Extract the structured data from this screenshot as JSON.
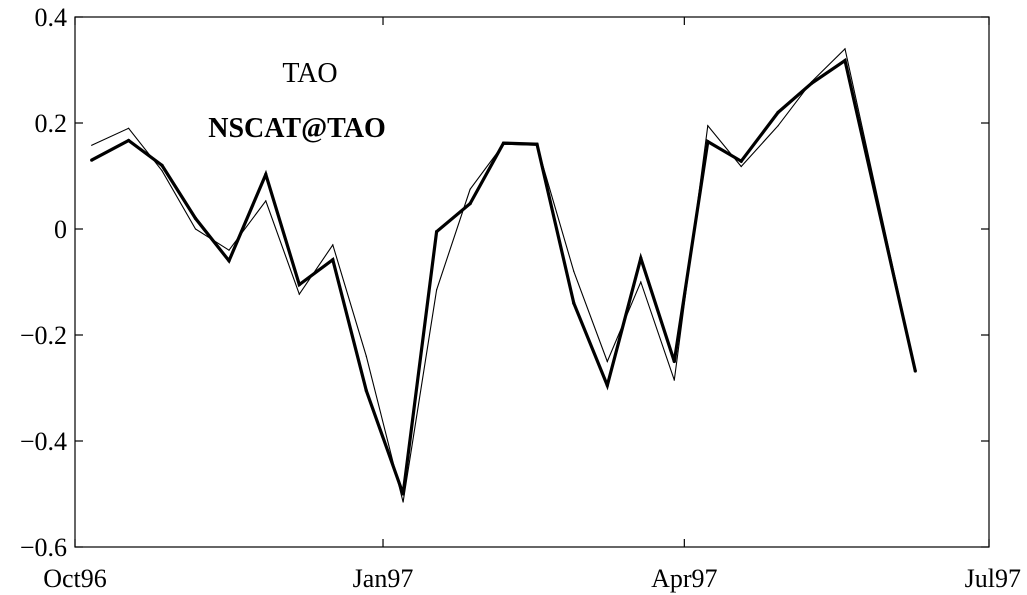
{
  "chart_data": {
    "type": "line",
    "title": "",
    "xlabel": "",
    "ylabel": "",
    "x_ticks": [
      {
        "date": "1996-10-01",
        "label": "Oct96"
      },
      {
        "date": "1997-01-01",
        "label": "Jan97"
      },
      {
        "date": "1997-04-01",
        "label": "Apr97"
      },
      {
        "date": "1997-07-01",
        "label": "Jul97"
      }
    ],
    "xlim": [
      "1996-10-01",
      "1997-07-01"
    ],
    "ylim": [
      -0.6,
      0.4
    ],
    "y_ticks": [
      {
        "value": 0.4,
        "label": "0.4"
      },
      {
        "value": 0.2,
        "label": "0.2"
      },
      {
        "value": 0,
        "label": "0"
      },
      {
        "value": -0.2,
        "label": "−0.2"
      },
      {
        "value": -0.4,
        "label": "−0.4"
      },
      {
        "value": -0.6,
        "label": "−0.6"
      }
    ],
    "grid": false,
    "legend": {
      "placement": "top-left",
      "entries": [
        {
          "label": "TAO",
          "style": "thin"
        },
        {
          "label": "NSCAT@TAO",
          "style": "bold"
        }
      ]
    },
    "series": [
      {
        "name": "TAO",
        "style": "thin",
        "color": "#000000",
        "points": [
          {
            "x": "1996-10-06",
            "y": 0.158
          },
          {
            "x": "1996-10-17",
            "y": 0.19
          },
          {
            "x": "1996-10-27",
            "y": 0.11
          },
          {
            "x": "1996-11-06",
            "y": 0.0
          },
          {
            "x": "1996-11-16",
            "y": -0.04
          },
          {
            "x": "1996-11-27",
            "y": 0.053
          },
          {
            "x": "1996-12-07",
            "y": -0.123
          },
          {
            "x": "1996-12-17",
            "y": -0.03
          },
          {
            "x": "1996-12-27",
            "y": -0.24
          },
          {
            "x": "1997-01-07",
            "y": -0.515
          },
          {
            "x": "1997-01-17",
            "y": -0.115
          },
          {
            "x": "1997-01-27",
            "y": 0.075
          },
          {
            "x": "1997-02-06",
            "y": 0.16
          },
          {
            "x": "1997-02-16",
            "y": 0.158
          },
          {
            "x": "1997-02-27",
            "y": -0.08
          },
          {
            "x": "1997-03-09",
            "y": -0.25
          },
          {
            "x": "1997-03-19",
            "y": -0.1
          },
          {
            "x": "1997-03-29",
            "y": -0.285
          },
          {
            "x": "1997-04-08",
            "y": 0.195
          },
          {
            "x": "1997-04-18",
            "y": 0.118
          },
          {
            "x": "1997-04-29",
            "y": 0.195
          },
          {
            "x": "1997-05-09",
            "y": 0.278
          },
          {
            "x": "1997-05-19",
            "y": 0.34
          },
          {
            "x": "1997-06-09",
            "y": -0.265
          }
        ]
      },
      {
        "name": "NSCAT@TAO",
        "style": "bold",
        "color": "#000000",
        "points": [
          {
            "x": "1996-10-06",
            "y": 0.13
          },
          {
            "x": "1996-10-17",
            "y": 0.167
          },
          {
            "x": "1996-10-27",
            "y": 0.12
          },
          {
            "x": "1996-11-06",
            "y": 0.02
          },
          {
            "x": "1996-11-16",
            "y": -0.06
          },
          {
            "x": "1996-11-27",
            "y": 0.103
          },
          {
            "x": "1996-12-07",
            "y": -0.105
          },
          {
            "x": "1996-12-17",
            "y": -0.058
          },
          {
            "x": "1996-12-27",
            "y": -0.305
          },
          {
            "x": "1997-01-07",
            "y": -0.5
          },
          {
            "x": "1997-01-17",
            "y": -0.005
          },
          {
            "x": "1997-01-27",
            "y": 0.048
          },
          {
            "x": "1997-02-06",
            "y": 0.162
          },
          {
            "x": "1997-02-16",
            "y": 0.16
          },
          {
            "x": "1997-02-27",
            "y": -0.14
          },
          {
            "x": "1997-03-09",
            "y": -0.295
          },
          {
            "x": "1997-03-19",
            "y": -0.055
          },
          {
            "x": "1997-03-29",
            "y": -0.25
          },
          {
            "x": "1997-04-08",
            "y": 0.165
          },
          {
            "x": "1997-04-18",
            "y": 0.128
          },
          {
            "x": "1997-04-29",
            "y": 0.22
          },
          {
            "x": "1997-05-09",
            "y": 0.275
          },
          {
            "x": "1997-05-19",
            "y": 0.318
          },
          {
            "x": "1997-06-09",
            "y": -0.268
          }
        ]
      }
    ]
  }
}
